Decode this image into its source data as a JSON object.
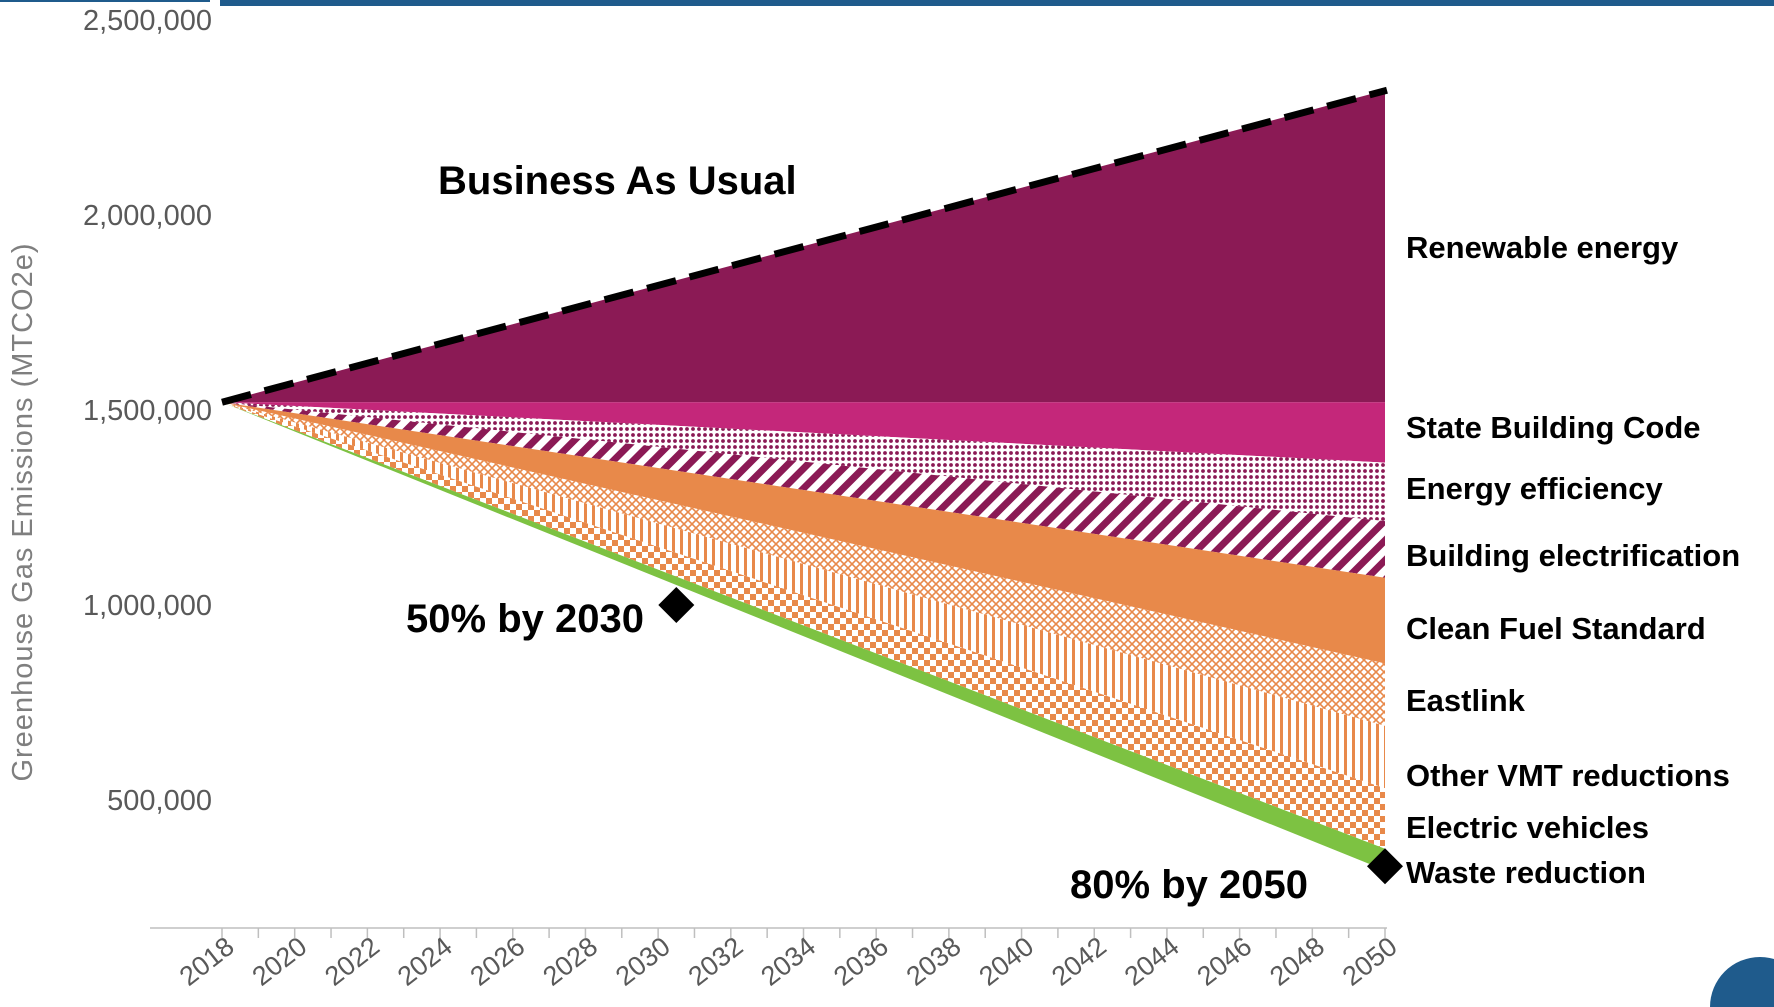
{
  "chart_data": {
    "type": "area",
    "title": "",
    "xlabel": "",
    "ylabel": "Greenhouse Gas Emissions (MTCO2e)",
    "x": [
      2018,
      2050
    ],
    "x_ticks": [
      "2018",
      "2020",
      "2022",
      "2024",
      "2026",
      "2028",
      "2030",
      "2032",
      "2034",
      "2036",
      "2038",
      "2040",
      "2042",
      "2044",
      "2046",
      "2048",
      "2050"
    ],
    "y_ticks": [
      {
        "value": 500000,
        "label": "500,000"
      },
      {
        "value": 1000000,
        "label": "1,000,000"
      },
      {
        "value": 1500000,
        "label": "1,500,000"
      },
      {
        "value": 2000000,
        "label": "2,000,000"
      },
      {
        "value": 2500000,
        "label": "2,500,000"
      }
    ],
    "ylim": [
      250000,
      2500000
    ],
    "xlim": [
      2018,
      2050
    ],
    "grid": false,
    "legend": "right",
    "business_as_usual": {
      "label": "Business As Usual",
      "values": [
        1520000,
        2320000
      ],
      "style": "dashed",
      "color": "#000000"
    },
    "series": [
      {
        "name": "Renewable energy",
        "values": [
          1520000,
          1520000
        ],
        "color": "#8b1a55",
        "pattern": "solid"
      },
      {
        "name": "State Building Code",
        "values": [
          1520000,
          1365000
        ],
        "color": "#c4277a",
        "pattern": "solid"
      },
      {
        "name": "Energy efficiency",
        "values": [
          1520000,
          1215000
        ],
        "color": "#c4277a",
        "pattern": "dots"
      },
      {
        "name": "Building electrification",
        "values": [
          1520000,
          1070000
        ],
        "color": "#8b1a55",
        "pattern": "diagonal"
      },
      {
        "name": "Clean Fuel Standard",
        "values": [
          1520000,
          850000
        ],
        "color": "#e8894a",
        "pattern": "solid"
      },
      {
        "name": "Eastlink",
        "values": [
          1520000,
          690000
        ],
        "color": "#e8894a",
        "pattern": "crosshatch"
      },
      {
        "name": "Other VMT reductions",
        "values": [
          1520000,
          530000
        ],
        "color": "#e8894a",
        "pattern": "vertical"
      },
      {
        "name": "Electric vehicles",
        "values": [
          1520000,
          375000
        ],
        "color": "#e8894a",
        "pattern": "checker"
      },
      {
        "name": "Waste reduction",
        "values": [
          1520000,
          320000
        ],
        "color": "#7dc242",
        "pattern": "solid"
      }
    ],
    "annotations": [
      {
        "label": "50% by 2030",
        "x": 2030.5,
        "y": 1000000
      },
      {
        "label": "80% by 2050",
        "x": 2050,
        "y": 330000
      }
    ]
  }
}
